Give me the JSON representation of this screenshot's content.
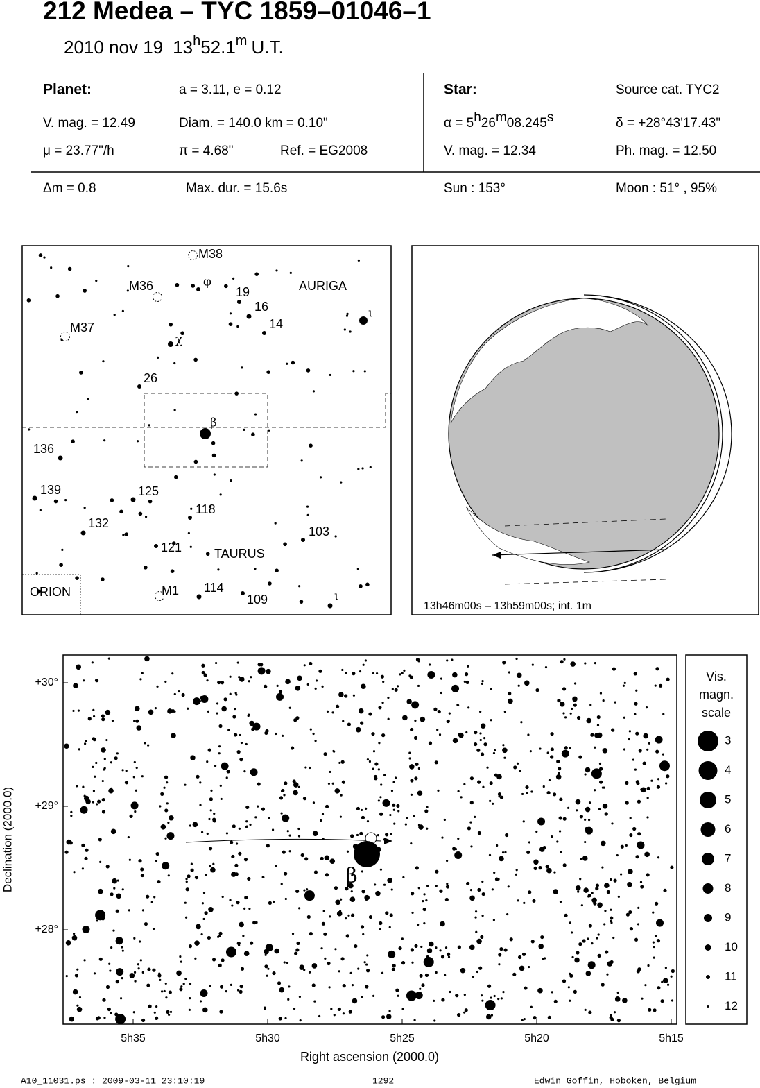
{
  "header": {
    "title": "212 Medea  –  TYC 1859–01046–1",
    "date": "2010 nov 19",
    "time_hours": "13",
    "time_h": "h",
    "time_minutes": "52.1",
    "time_m": "m",
    "time_zone": "U.T."
  },
  "planet": {
    "heading": "Planet:",
    "orbit": "a = 3.11, e = 0.12",
    "vmag": "V. mag. = 12.49",
    "diam": "Diam. = 140.0 km = 0.10\"",
    "motion": "μ =  23.77\"/h",
    "parallax": "π =  4.68\"",
    "ref": "Ref. = EG2008"
  },
  "star": {
    "heading": "Star:",
    "source": "Source cat.  TYC2",
    "ra_prefix": "α =  5",
    "ra_h": "h",
    "ra_min": "26",
    "ra_m": "m",
    "ra_sec": "08.245",
    "ra_s": "s",
    "dec": "δ = +28°43'17.43\"",
    "vmag": "V. mag. = 12.34",
    "phmag": "Ph. mag. = 12.50"
  },
  "event": {
    "delta_mag": "Δm = 0.8",
    "max_dur": "Max. dur. = 15.6s",
    "sun": "Sun : 153°",
    "moon": "Moon :  51° , 95%"
  },
  "finder": {
    "labels": [
      "M38",
      "M36",
      "φ",
      "19",
      "16",
      "14",
      "AURIGA",
      "ι",
      "M37",
      "χ",
      "26",
      "β",
      "136",
      "139",
      "125",
      "118",
      "132",
      "103",
      "121",
      "TAURUS",
      "ORION",
      "M1",
      "114",
      "109",
      "ι"
    ]
  },
  "globe": {
    "caption": "13h46m00s – 13h59m00s; int.  1m"
  },
  "star_chart": {
    "y_label": "Declination (2000.0)",
    "x_label": "Right ascension (2000.0)",
    "y_ticks": [
      "+30°",
      "+29°",
      "+28°"
    ],
    "x_ticks": [
      "5h35",
      "5h30",
      "5h25",
      "5h20",
      "5h15"
    ],
    "target_label": "β"
  },
  "legend": {
    "title_lines": [
      "Vis.",
      "magn.",
      "scale"
    ],
    "magnitudes": [
      3,
      4,
      5,
      6,
      7,
      8,
      9,
      10,
      11,
      12
    ]
  },
  "footer": {
    "file": "A10_11031.ps : 2009-03-11 23:10:19",
    "number": "1292",
    "author": "Edwin Goffin, Hoboken, Belgium"
  }
}
